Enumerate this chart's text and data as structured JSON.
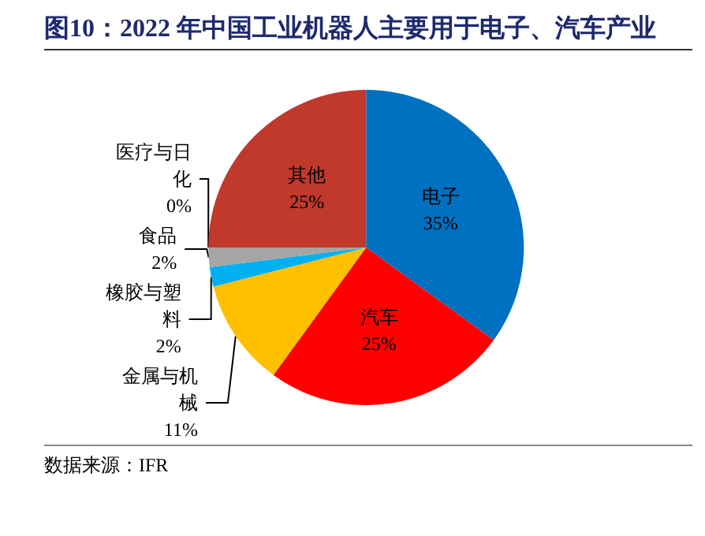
{
  "chart_data": {
    "type": "pie",
    "title": "图10：2022 年中国工业机器人主要用于电子、汽车产业",
    "categories": [
      "电子",
      "汽车",
      "金属与机械",
      "橡胶与塑料",
      "食品",
      "医疗与日化",
      "其他"
    ],
    "values": [
      35,
      25,
      11,
      2,
      2,
      0,
      25
    ],
    "value_labels": [
      "35%",
      "25%",
      "11%",
      "2%",
      "2%",
      "0%",
      "25%"
    ],
    "colors": [
      "#0070c0",
      "#ff0000",
      "#ffc000",
      "#00b0f0",
      "#a5a5a5",
      "#ffff00",
      "#c0392b"
    ],
    "legend": false,
    "annotations": [
      "数据来源：IFR"
    ]
  }
}
